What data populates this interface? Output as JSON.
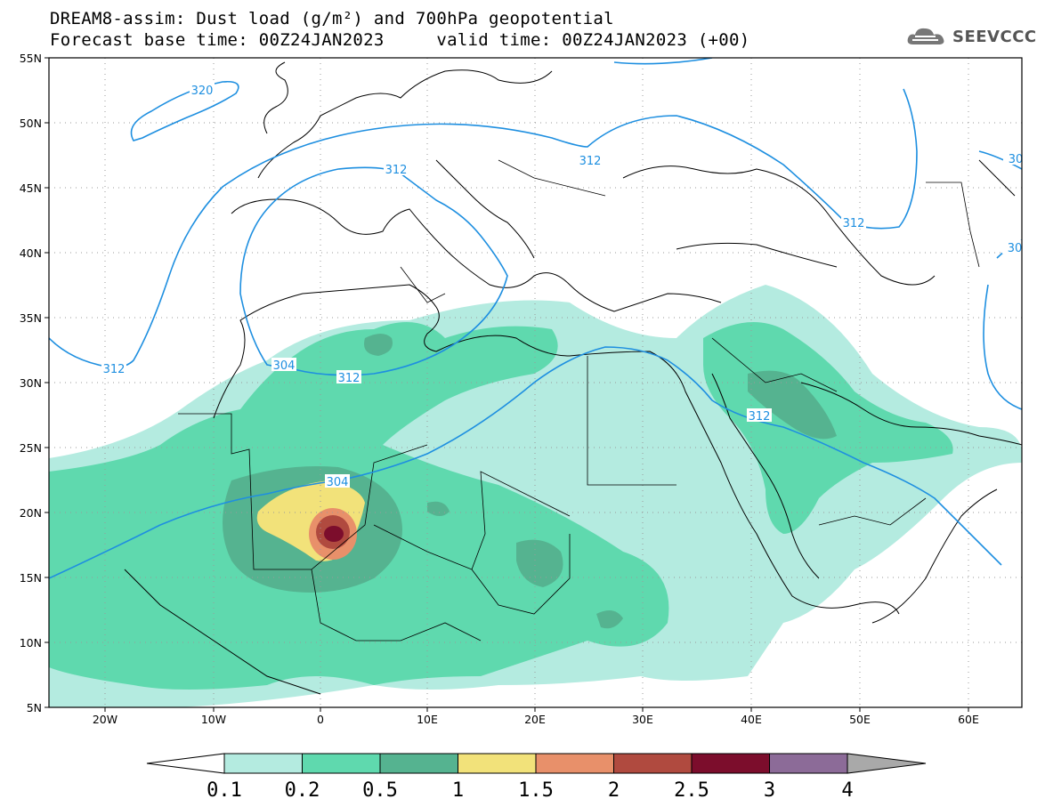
{
  "title_line1": "DREAM8-assim: Dust load (g/m²) and 700hPa geopotential",
  "title_line2": "Forecast base time: 00Z24JAN2023     valid time: 00Z24JAN2023 (+00)",
  "logo_text": "SEEVCCC",
  "map": {
    "lon_labels": [
      "20W",
      "10W",
      "0",
      "10E",
      "20E",
      "30E",
      "40E",
      "50E",
      "60E"
    ],
    "lat_labels": [
      "55N",
      "50N",
      "45N",
      "40N",
      "35N",
      "30N",
      "25N",
      "20N",
      "15N",
      "10N",
      "5N"
    ],
    "contour_labels": [
      "320",
      "312",
      "304",
      "312",
      "304",
      "312",
      "312",
      "312",
      "312",
      "30",
      "30"
    ]
  },
  "legend": {
    "levels": [
      "0.1",
      "0.2",
      "0.5",
      "1",
      "1.5",
      "2",
      "2.5",
      "3",
      "4"
    ],
    "colors": [
      "#b4ebe0",
      "#5fd9ae",
      "#55b390",
      "#f2e27a",
      "#e8906a",
      "#b04a3f",
      "#7c0d2c",
      "#8c6b98",
      "#a9a9a9"
    ]
  },
  "colors": {
    "contour": "#1e8fe0",
    "border": "#000000",
    "grid": "#9a9a9a"
  }
}
